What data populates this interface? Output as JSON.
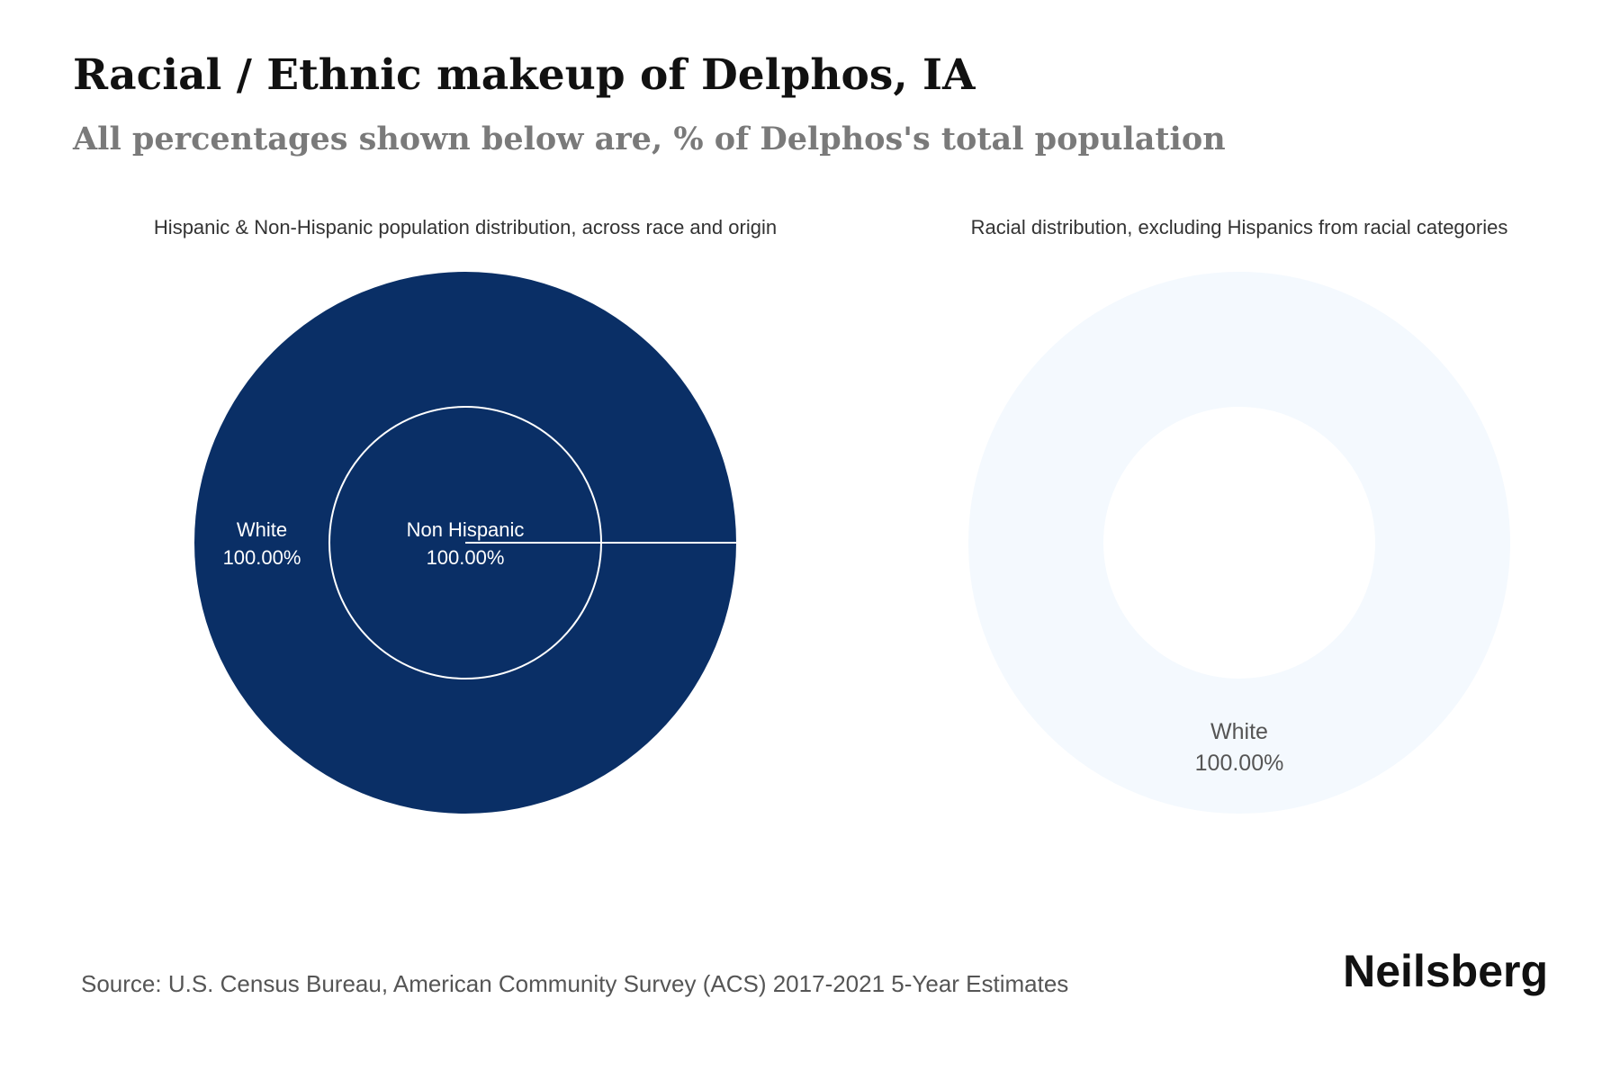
{
  "header": {
    "title": "Racial / Ethnic makeup of Delphos, IA",
    "subtitle": "All percentages shown below are, % of Delphos's total population"
  },
  "footer": {
    "source": "Source: U.S. Census Bureau, American Community Survey (ACS) 2017-2021 5-Year Estimates",
    "brand": "Neilsberg"
  },
  "colors": {
    "dark_navy": "#0a2f66",
    "pale_blue": "#f4f9fe",
    "white": "#ffffff",
    "label_dark": "#555555"
  },
  "chart_data": [
    {
      "type": "pie",
      "title": "Hispanic & Non-Hispanic population distribution, across race and origin",
      "inner_ring": {
        "categories": [
          "Non Hispanic"
        ],
        "values": [
          100.0
        ],
        "labels": [
          "100.00%"
        ]
      },
      "outer_ring": {
        "categories": [
          "White"
        ],
        "values": [
          100.0
        ],
        "labels": [
          "100.00%"
        ]
      }
    },
    {
      "type": "pie",
      "title": "Racial distribution, excluding Hispanics from racial categories",
      "categories": [
        "White"
      ],
      "values": [
        100.0
      ],
      "labels": [
        "100.00%"
      ]
    }
  ]
}
